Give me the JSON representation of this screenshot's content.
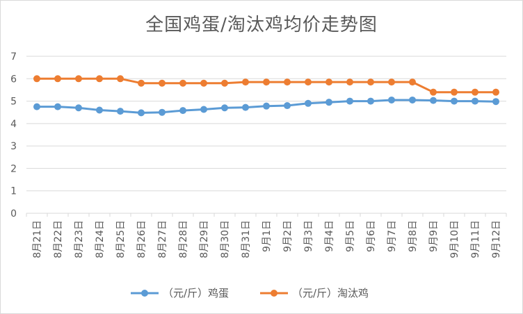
{
  "chart_data": {
    "type": "line",
    "title": "全国鸡蛋/淘汰鸡均价走势图",
    "categories": [
      "8月21日",
      "8月22日",
      "8月23日",
      "8月24日",
      "8月25日",
      "8月26日",
      "8月27日",
      "8月28日",
      "8月29日",
      "8月30日",
      "8月31日",
      "9月1日",
      "9月2日",
      "9月3日",
      "9月4日",
      "9月5日",
      "9月6日",
      "9月7日",
      "9月8日",
      "9月9日",
      "9月10日",
      "9月11日",
      "9月12日"
    ],
    "series": [
      {
        "name": "（元/斤）鸡蛋",
        "color": "#5b9bd5",
        "values": [
          4.75,
          4.75,
          4.7,
          4.6,
          4.55,
          4.48,
          4.5,
          4.58,
          4.63,
          4.7,
          4.72,
          4.78,
          4.8,
          4.9,
          4.95,
          5.0,
          5.0,
          5.05,
          5.05,
          5.03,
          5.0,
          5.0,
          4.98
        ]
      },
      {
        "name": "（元/斤）淘汰鸡",
        "color": "#ed7d31",
        "values": [
          6.0,
          6.0,
          6.0,
          6.0,
          6.0,
          5.8,
          5.8,
          5.8,
          5.8,
          5.8,
          5.85,
          5.85,
          5.85,
          5.85,
          5.85,
          5.85,
          5.85,
          5.85,
          5.85,
          5.4,
          5.4,
          5.4,
          5.4
        ]
      }
    ],
    "yticks": [
      "0",
      "1",
      "2",
      "3",
      "4",
      "5",
      "6",
      "7"
    ],
    "ylim": [
      0,
      7
    ],
    "grid": true,
    "legend_position": "bottom"
  }
}
